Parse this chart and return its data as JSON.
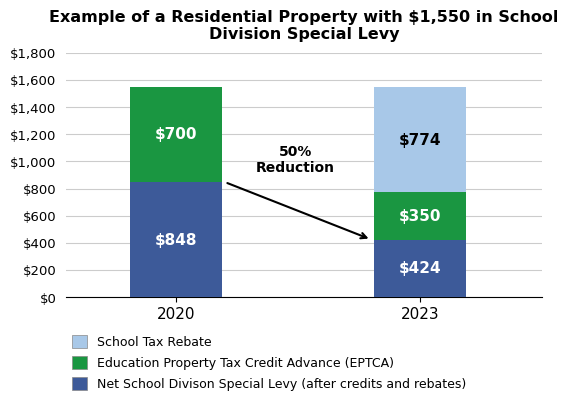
{
  "title": "Example of a Residential Property with $1,550 in School\nDivision Special Levy",
  "categories": [
    "2020",
    "2023"
  ],
  "net_levy": [
    848,
    424
  ],
  "eptca": [
    700,
    350
  ],
  "rebate": [
    0,
    774
  ],
  "net_levy_color": "#3d5a99",
  "eptca_color": "#1a9641",
  "rebate_color": "#a8c8e8",
  "bar_width": 0.38,
  "ylim": [
    0,
    1800
  ],
  "yticks": [
    0,
    200,
    400,
    600,
    800,
    1000,
    1200,
    1400,
    1600,
    1800
  ],
  "ytick_labels": [
    "$0",
    "$200",
    "$400",
    "$600",
    "$800",
    "$1,000",
    "$1,200",
    "$1,400",
    "$1,600",
    "$1,800"
  ],
  "legend_labels": [
    "School Tax Rebate",
    "Education Property Tax Credit Advance (EPTCA)",
    "Net School Divison Special Levy (after credits and rebates)"
  ],
  "annotation_text": "50%\nReduction",
  "background_color": "#ffffff",
  "grid_color": "#cccccc",
  "title_fontsize": 11.5,
  "bar_label_fontsize": 11,
  "legend_fontsize": 9,
  "bar_label_color_dark": "#000000",
  "bar_label_color_light": "#ffffff"
}
